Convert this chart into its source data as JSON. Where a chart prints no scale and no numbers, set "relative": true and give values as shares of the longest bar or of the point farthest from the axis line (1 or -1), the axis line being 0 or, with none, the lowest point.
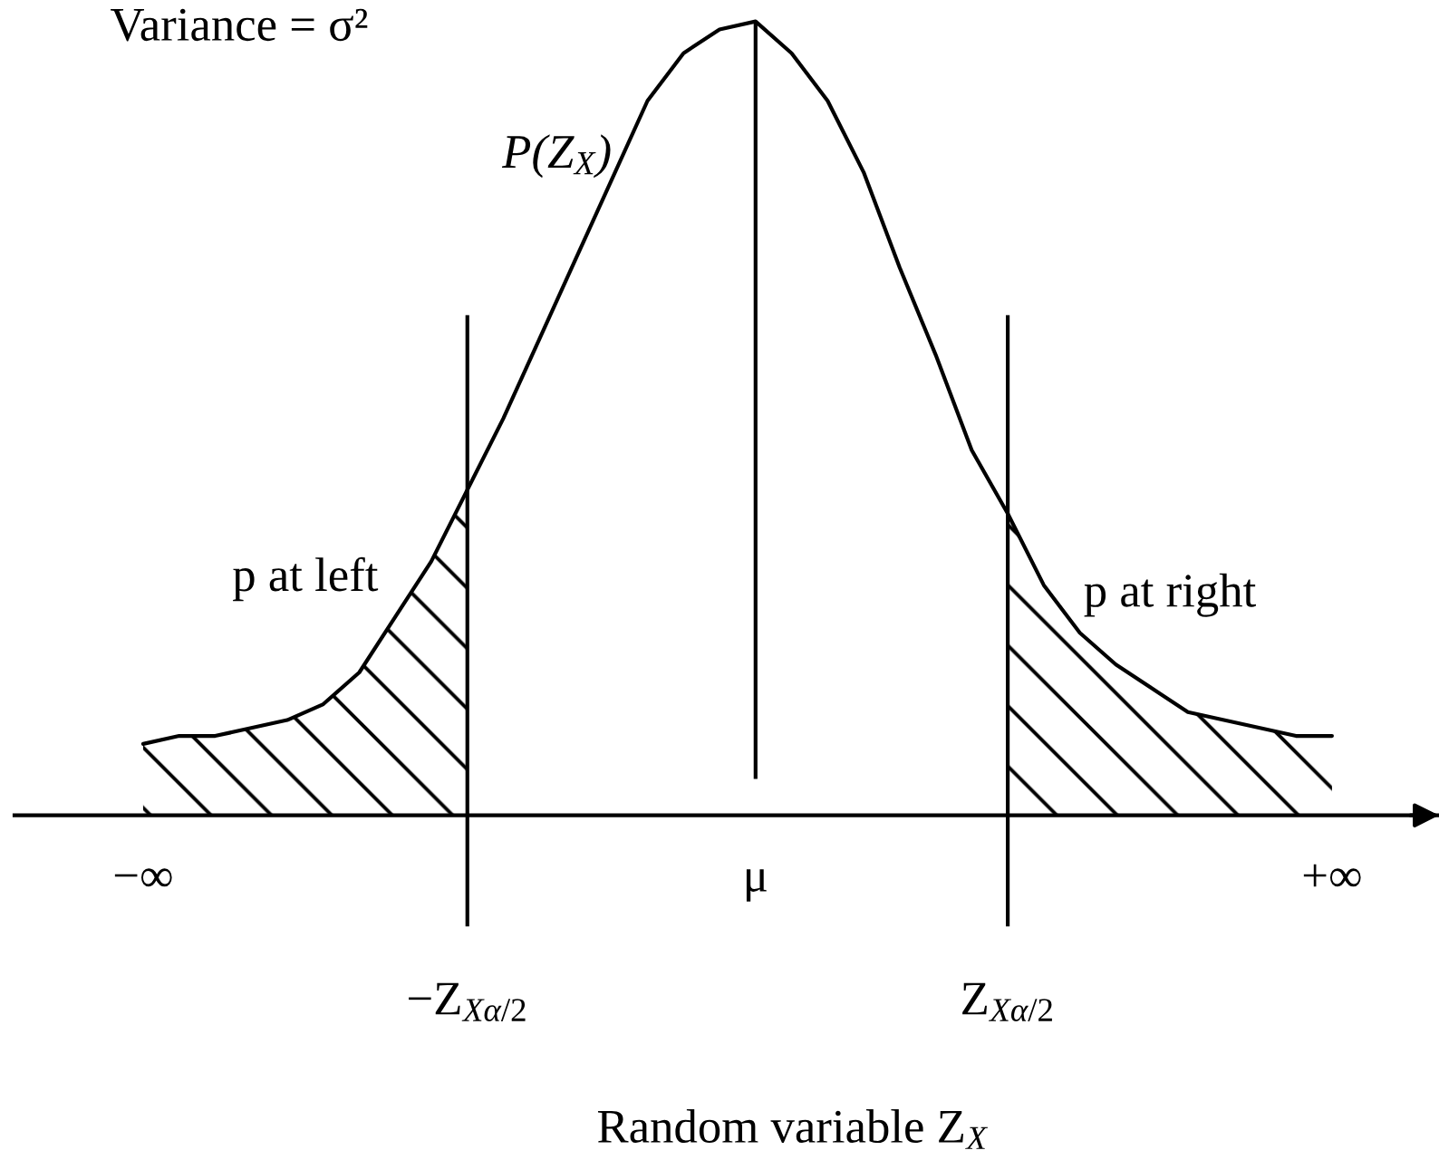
{
  "chart_data": {
    "type": "line",
    "relative": true,
    "xlabel": "Random variable Z$_{X}$",
    "annotations": [
      "Variance = σ²"
    ],
    "categories": [
      "−∞",
      null,
      null,
      null,
      null,
      null,
      null,
      null,
      null,
      "−Z$_{Xα/2}$",
      null,
      null,
      null,
      null,
      null,
      null,
      null,
      "μ",
      null,
      null,
      null,
      null,
      null,
      null,
      "Z$_{Xα/2}$",
      null,
      null,
      null,
      null,
      null,
      null,
      null,
      null,
      "+∞"
    ],
    "tick_labels": "x",
    "series": [
      {
        "name": "P(Z$_{X}$)",
        "color": "#000000",
        "values": [
          0.09,
          0.1,
          0.1,
          0.11,
          0.12,
          0.14,
          0.18,
          0.25,
          0.32,
          0.41,
          0.5,
          0.6,
          0.7,
          0.8,
          0.9,
          0.96,
          0.99,
          1.0,
          0.96,
          0.9,
          0.81,
          0.69,
          0.58,
          0.46,
          0.38,
          0.29,
          0.23,
          0.19,
          0.16,
          0.13,
          0.12,
          0.11,
          0.1,
          0.1
        ]
      },
      {
        "type": "area",
        "name": "p at left",
        "color": "#000000",
        "values": [
          0.09,
          0.1,
          0.1,
          0.11,
          0.12,
          0.14,
          0.18,
          0.25,
          0.32,
          0.41,
          null,
          null,
          null,
          null,
          null,
          null,
          null,
          null,
          null,
          null,
          null,
          null,
          null,
          null,
          null,
          null,
          null,
          null,
          null,
          null,
          null,
          null,
          null,
          null
        ]
      },
      {
        "type": "area",
        "name": "p at right",
        "color": "#000000",
        "values": [
          null,
          null,
          null,
          null,
          null,
          null,
          null,
          null,
          null,
          null,
          null,
          null,
          null,
          null,
          null,
          null,
          null,
          null,
          null,
          null,
          null,
          null,
          null,
          null,
          0.38,
          0.29,
          0.23,
          0.19,
          0.16,
          0.13,
          0.12,
          0.11,
          0.1,
          0.1
        ]
      }
    ],
    "ref_lines": [
      {
        "axis": "x",
        "value": "μ",
        "color": "#000000"
      },
      {
        "axis": "x",
        "value": "−Z$_{Xα/2}$",
        "color": "#000000"
      },
      {
        "axis": "x",
        "value": "Z$_{Xα/2}$",
        "color": "#000000"
      }
    ]
  }
}
